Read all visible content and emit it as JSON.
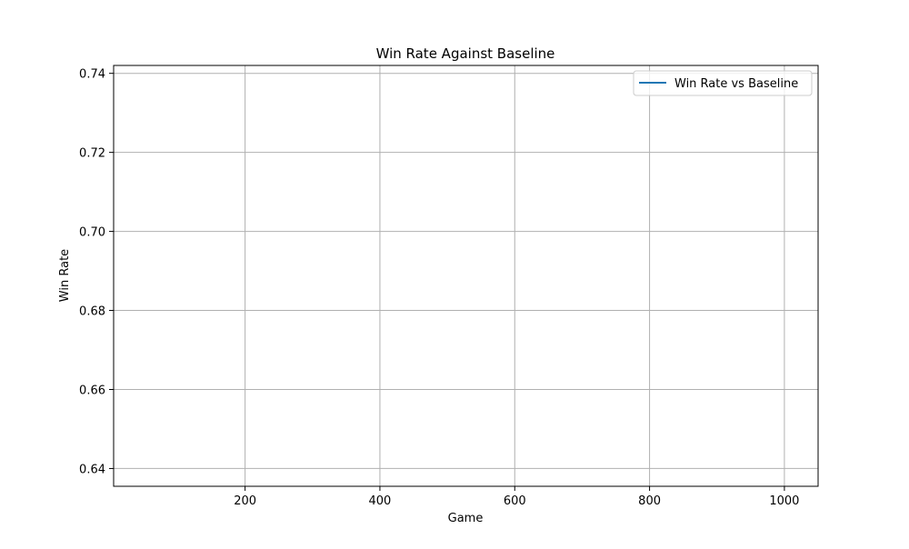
{
  "chart_data": {
    "type": "line",
    "title": "Win Rate Against Baseline",
    "xlabel": "Game",
    "ylabel": "Win Rate",
    "xlim": [
      5,
      1050
    ],
    "ylim": [
      0.6355,
      0.742
    ],
    "xticks": [
      200,
      400,
      600,
      800,
      1000
    ],
    "xtick_labels": [
      "200",
      "400",
      "600",
      "800",
      "1000"
    ],
    "yticks": [
      0.64,
      0.66,
      0.68,
      0.7,
      0.72,
      0.74
    ],
    "ytick_labels": [
      "0.64",
      "0.66",
      "0.68",
      "0.70",
      "0.72",
      "0.74"
    ],
    "grid": true,
    "legend_position": "upper right",
    "series": [
      {
        "name": "Win Rate vs Baseline",
        "color": "#1f77b4",
        "x": [],
        "y": []
      }
    ]
  }
}
